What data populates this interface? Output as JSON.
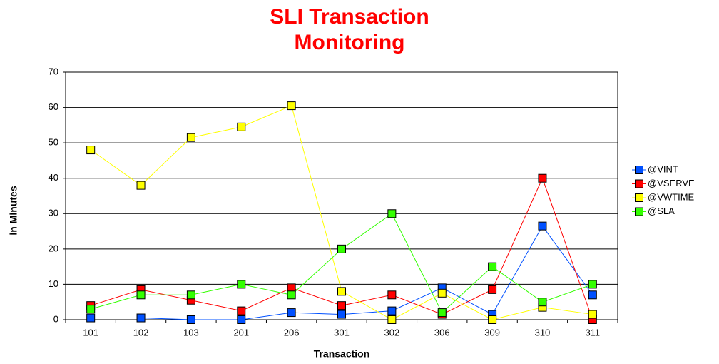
{
  "chart_data": {
    "type": "line",
    "title": "SLI Transaction Monitoring",
    "x_label": "Transaction",
    "y_label": "in Minutes",
    "categories": [
      "101",
      "102",
      "103",
      "201",
      "206",
      "301",
      "302",
      "306",
      "309",
      "310",
      "311"
    ],
    "series": [
      {
        "name": "@VINT",
        "color": "#0050ff",
        "values": [
          0.5,
          0.5,
          0,
          0,
          2,
          1.5,
          2.5,
          9,
          1.5,
          26.5,
          7
        ]
      },
      {
        "name": "@VSERVE",
        "color": "#ff0000",
        "values": [
          4,
          8.5,
          5.5,
          2.5,
          9,
          4,
          7,
          1.5,
          8.5,
          40,
          0
        ]
      },
      {
        "name": "@VWTIME",
        "color": "#ffff00",
        "values": [
          48,
          38,
          51.5,
          54.5,
          60.5,
          8,
          0,
          7.5,
          0,
          3.5,
          1.5
        ]
      },
      {
        "name": "@SLA",
        "color": "#33ff00",
        "values": [
          3,
          7,
          7,
          10,
          7,
          20,
          30,
          2,
          15,
          5,
          10
        ]
      }
    ],
    "ylim": [
      0,
      70
    ],
    "yticks": [
      0,
      10,
      20,
      30,
      40,
      50,
      60,
      70
    ],
    "grid": true,
    "legend": "right"
  }
}
